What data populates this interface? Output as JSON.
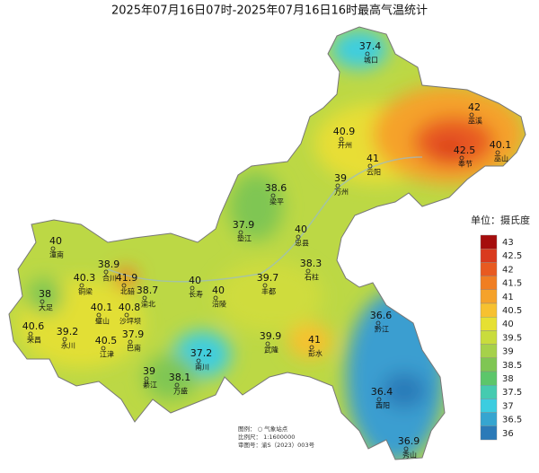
{
  "title": "2025年07月16日07时-2025年07月16日16时最高气温统计",
  "stations": [
    {
      "name": "城口",
      "value": 37.4
    },
    {
      "name": "巫溪",
      "value": 42
    },
    {
      "name": "开州",
      "value": 40.9
    },
    {
      "name": "巫山",
      "value": 40.1
    },
    {
      "name": "云阳",
      "value": 41
    },
    {
      "name": "奉节",
      "value": 42.5
    },
    {
      "name": "万州",
      "value": 39
    },
    {
      "name": "梁平",
      "value": 38.6
    },
    {
      "name": "垫江",
      "value": 37.9
    },
    {
      "name": "忠县",
      "value": 40
    },
    {
      "name": "潼南",
      "value": 40
    },
    {
      "name": "石柱",
      "value": 38.3
    },
    {
      "name": "铜梁",
      "value": 40.3
    },
    {
      "name": "合川",
      "value": 38.9
    },
    {
      "name": "北碚",
      "value": 41.9
    },
    {
      "name": "渝北",
      "value": 38.7
    },
    {
      "name": "长寿",
      "value": 40
    },
    {
      "name": "涪陵",
      "value": 40
    },
    {
      "name": "丰都",
      "value": 39.7
    },
    {
      "name": "大足",
      "value": 38
    },
    {
      "name": "璧山",
      "value": 40.1
    },
    {
      "name": "沙坪坝",
      "value": 40.8
    },
    {
      "name": "荣昌",
      "value": 40.6
    },
    {
      "name": "永川",
      "value": 39.2
    },
    {
      "name": "江津",
      "value": 40.5
    },
    {
      "name": "巴南",
      "value": 37.9
    },
    {
      "name": "南川",
      "value": 37.2
    },
    {
      "name": "武隆",
      "value": 39.9
    },
    {
      "name": "彭水",
      "value": 41
    },
    {
      "name": "黔江",
      "value": 36.6
    },
    {
      "name": "綦江",
      "value": 39
    },
    {
      "name": "万盛",
      "value": 38.1
    },
    {
      "name": "酉阳",
      "value": 36.4
    },
    {
      "name": "秀山",
      "value": 36.9
    }
  ],
  "legend": {
    "title": "单位：摄氏度",
    "levels": [
      {
        "value": 43,
        "color": "#a50d0d"
      },
      {
        "value": 42.5,
        "color": "#d93a1e"
      },
      {
        "value": 42,
        "color": "#e85a20"
      },
      {
        "value": 41.5,
        "color": "#f07e22"
      },
      {
        "value": 41,
        "color": "#f5a22a"
      },
      {
        "value": 40.5,
        "color": "#f7c12f"
      },
      {
        "value": 40,
        "color": "#e6e032"
      },
      {
        "value": 39.5,
        "color": "#c9dc3c"
      },
      {
        "value": 39,
        "color": "#a6d14a"
      },
      {
        "value": 38.5,
        "color": "#7fc653"
      },
      {
        "value": 38,
        "color": "#5cc66a"
      },
      {
        "value": 37.5,
        "color": "#45cbb0"
      },
      {
        "value": 37,
        "color": "#3ccde0"
      },
      {
        "value": 36.5,
        "color": "#36a5d0"
      },
      {
        "value": 36,
        "color": "#2b7ab8"
      }
    ]
  },
  "notes": [
    "图例： ○ 气象站点",
    "比例尺： 1:1600000",
    "审图号：渝S（2023）003号"
  ]
}
